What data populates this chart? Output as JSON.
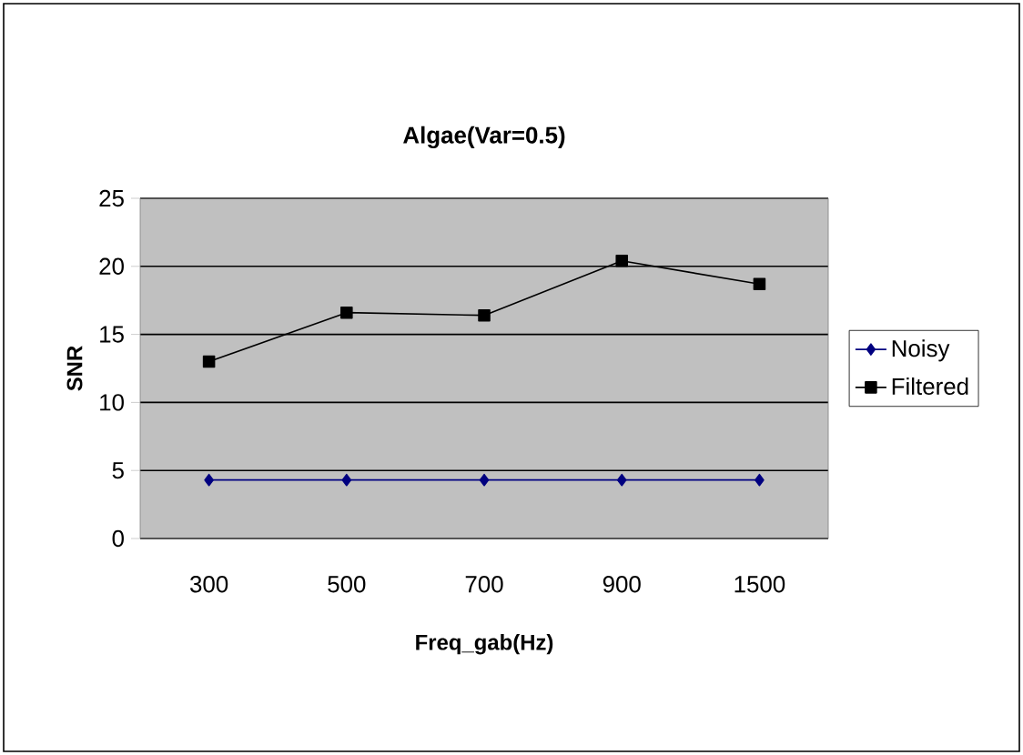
{
  "chart_data": {
    "type": "line",
    "title": "Algae(Var=0.5)",
    "xlabel": "Freq_gab(Hz)",
    "ylabel": "SNR",
    "categories": [
      "300",
      "500",
      "700",
      "900",
      "1500"
    ],
    "series": [
      {
        "name": "Noisy",
        "color": "#000080",
        "marker": "diamond",
        "values": [
          4.3,
          4.3,
          4.3,
          4.3,
          4.3
        ]
      },
      {
        "name": "Filtered",
        "color": "#000000",
        "marker": "square",
        "values": [
          13,
          16.6,
          16.4,
          20.4,
          18.7
        ]
      }
    ],
    "ylim": [
      0,
      25
    ],
    "yticks": [
      0,
      5,
      10,
      15,
      20,
      25
    ],
    "grid": "y",
    "legend": "right",
    "line_style": "solid"
  }
}
